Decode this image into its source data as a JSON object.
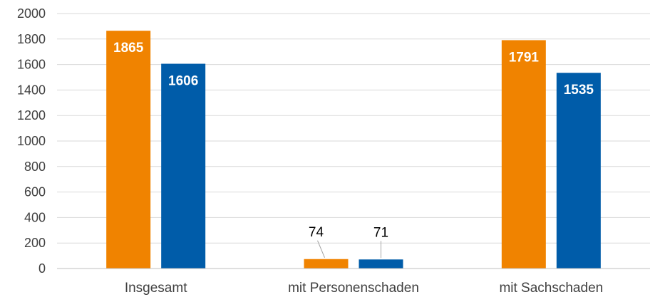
{
  "chart_data": {
    "type": "bar",
    "categories": [
      "Insgesamt",
      "mit Personenschaden",
      "mit Sachschaden"
    ],
    "series": [
      {
        "color": "#f08300",
        "values": [
          1865,
          74,
          1791
        ]
      },
      {
        "color": "#005ca9",
        "values": [
          1606,
          71,
          1535
        ]
      }
    ],
    "ylim": [
      0,
      2000
    ],
    "yticks": [
      0,
      200,
      400,
      600,
      800,
      1000,
      1200,
      1400,
      1600,
      1800,
      2000
    ],
    "grid": true,
    "legend": "none",
    "xlabel": "",
    "ylabel": "",
    "title": ""
  }
}
